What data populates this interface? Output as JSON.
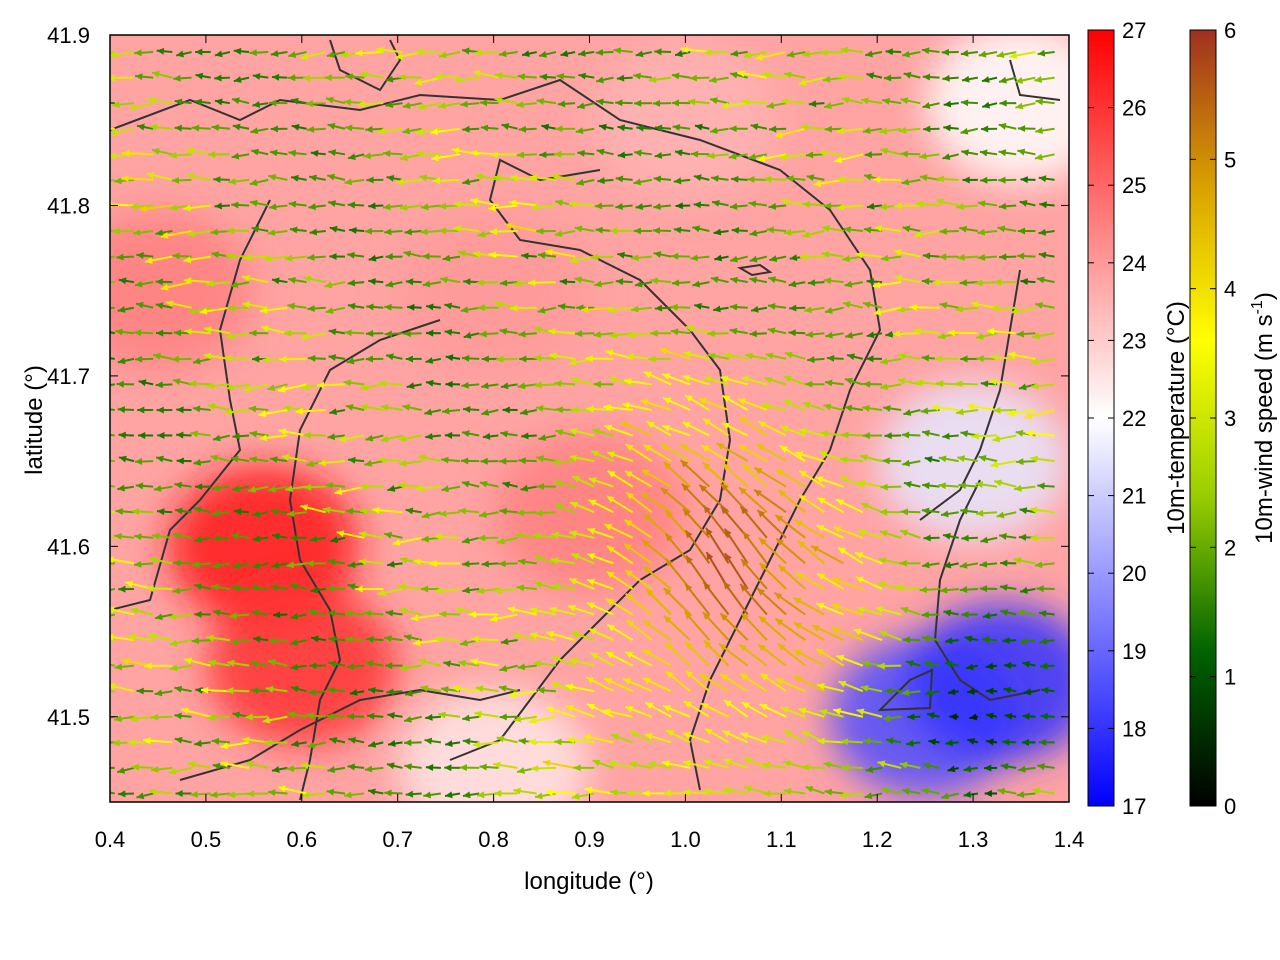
{
  "chart_data": {
    "type": "heatmap",
    "title": "",
    "xlabel": "longitude (°)",
    "ylabel": "latitude (°)",
    "xlim": [
      0.4,
      1.4
    ],
    "ylim": [
      41.45,
      41.9
    ],
    "x_ticks": [
      "0.4",
      "0.5",
      "0.6",
      "0.7",
      "0.8",
      "0.9",
      "1.0",
      "1.1",
      "1.2",
      "1.3",
      "1.4"
    ],
    "y_ticks": [
      "41.5",
      "41.6",
      "41.7",
      "41.8",
      "41.9"
    ],
    "temperature_colorbar": {
      "label": "10m-temperature (°C)",
      "range": [
        17,
        27
      ],
      "ticks": [
        "17",
        "18",
        "19",
        "20",
        "21",
        "22",
        "23",
        "24",
        "25",
        "26",
        "27"
      ],
      "colors": [
        "#0000ff",
        "#ffffff",
        "#ff0000"
      ]
    },
    "wind_colorbar": {
      "label_main": "10m-wind speed (m s",
      "label_sup": "-1",
      "label_end": ")",
      "range": [
        0,
        6
      ],
      "ticks": [
        "0",
        "1",
        "2",
        "3",
        "4",
        "5",
        "6"
      ],
      "colors": [
        "#000000",
        "#006400",
        "#9acd00",
        "#ffff00",
        "#d8a000",
        "#a03020"
      ]
    },
    "temperature_regions": [
      {
        "lon": 0.56,
        "lat": 41.6,
        "value": 26.5
      },
      {
        "lon": 0.6,
        "lat": 41.53,
        "value": 26.0
      },
      {
        "lon": 0.45,
        "lat": 41.75,
        "value": 24.5
      },
      {
        "lon": 0.8,
        "lat": 41.75,
        "value": 24.0
      },
      {
        "lon": 0.9,
        "lat": 41.62,
        "value": 24.5
      },
      {
        "lon": 1.0,
        "lat": 41.85,
        "value": 23.5
      },
      {
        "lon": 1.3,
        "lat": 41.65,
        "value": 21.5
      },
      {
        "lon": 1.25,
        "lat": 41.5,
        "value": 18.5
      },
      {
        "lon": 1.33,
        "lat": 41.52,
        "value": 18.0
      },
      {
        "lon": 1.35,
        "lat": 41.86,
        "value": 22.0
      },
      {
        "lon": 0.8,
        "lat": 41.47,
        "value": 22.5
      }
    ],
    "wind_field": {
      "dominant_direction": "east-to-west",
      "speed_range": [
        0,
        6
      ],
      "strong_zone": {
        "lon": 1.05,
        "lat": 41.58,
        "speed": 5.8,
        "direction": "from south-east"
      },
      "calm_zone": {
        "lon": 1.3,
        "lat": 41.5,
        "speed": 0.3
      }
    },
    "grid": false,
    "legend": "colorbars-right"
  }
}
